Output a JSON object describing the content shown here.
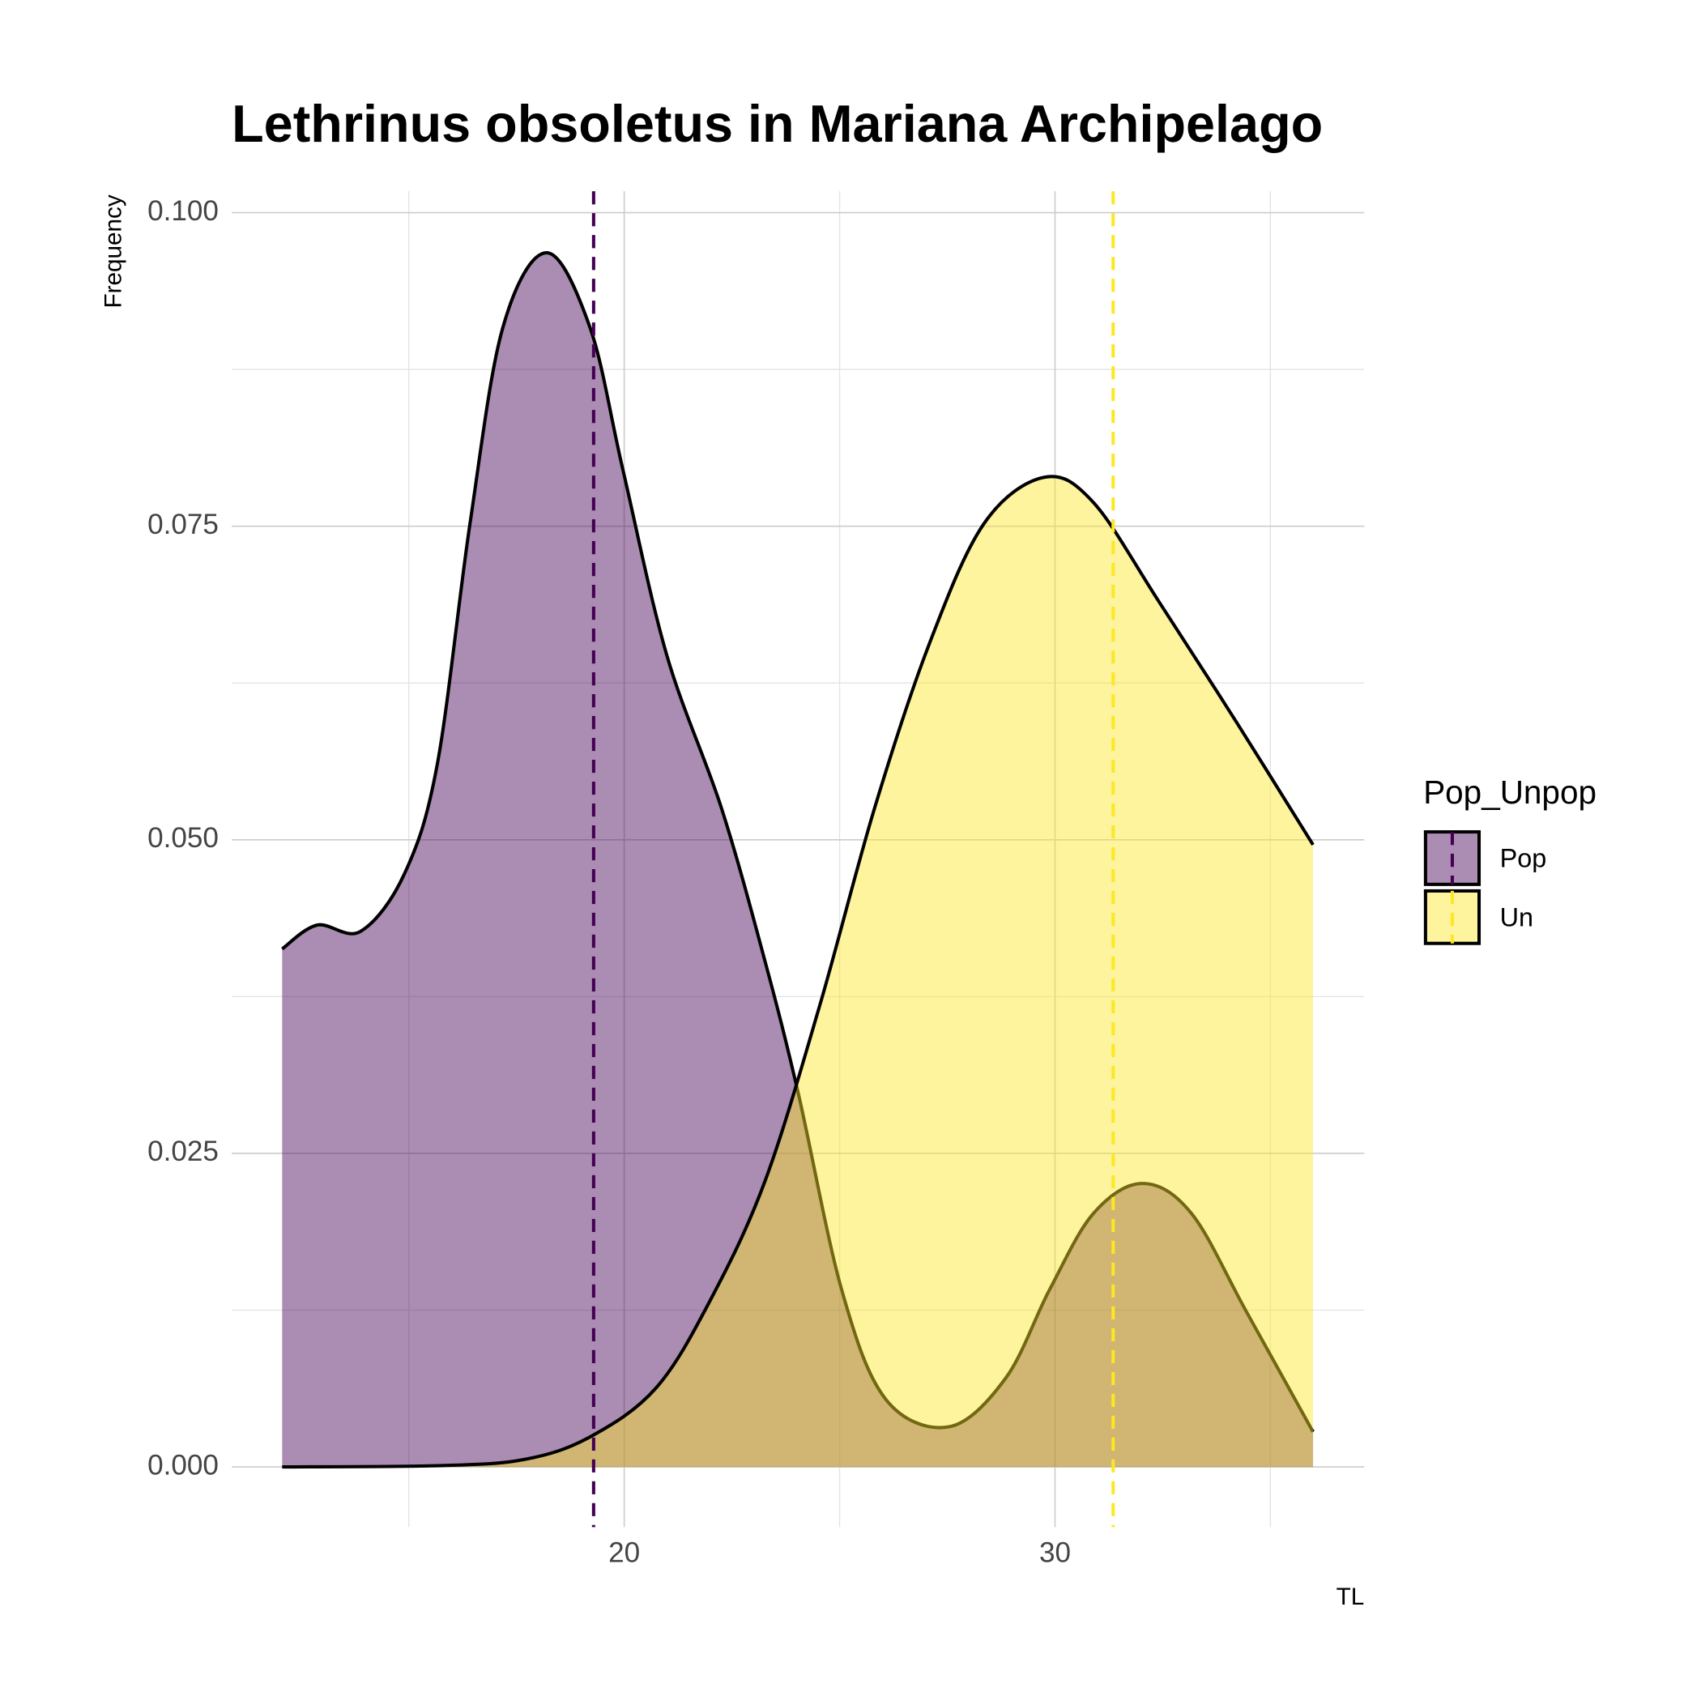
{
  "chart_data": {
    "type": "density",
    "title": "Lethrinus obsoletus in Mariana Archipelago",
    "x_label": "TL",
    "y_label": "Frequency",
    "legend_title": "Pop_Unpop",
    "legend_position": "right",
    "xlim": [
      10.89,
      37.18
    ],
    "ylim": [
      -0.0048,
      0.1017
    ],
    "xticks": [
      20,
      30
    ],
    "yticks": [
      {
        "value": 0,
        "label": "0.000"
      },
      {
        "value": 0.025,
        "label": "0.025"
      },
      {
        "value": 0.05,
        "label": "0.050"
      },
      {
        "value": 0.075,
        "label": "0.075"
      },
      {
        "value": 0.1,
        "label": "0.100"
      }
    ],
    "grid": true,
    "series": [
      {
        "name": "Pop",
        "color": "#440154",
        "mean": 19.29,
        "x": [
          12.06,
          12.87,
          13.88,
          14.9,
          15.66,
          16.42,
          17.18,
          18.2,
          19.21,
          19.97,
          20.99,
          22.26,
          23.27,
          24.04,
          25.05,
          26.07,
          27.54,
          28.86,
          29.87,
          30.89,
          32.03,
          33.17,
          34.44,
          35.99
        ],
        "values": [
          0.0413,
          0.0432,
          0.0427,
          0.0473,
          0.056,
          0.0752,
          0.0908,
          0.0968,
          0.0908,
          0.0795,
          0.0647,
          0.0525,
          0.0403,
          0.0298,
          0.0141,
          0.0054,
          0.0032,
          0.0071,
          0.0141,
          0.0202,
          0.0226,
          0.0202,
          0.0124,
          0.0028
        ]
      },
      {
        "name": "Un",
        "color": "#FDE725",
        "mean": 31.35,
        "x": [
          12.06,
          15.66,
          17.69,
          19.21,
          20.74,
          22.0,
          23.27,
          24.54,
          25.81,
          27.08,
          28.35,
          29.75,
          30.89,
          32.41,
          34.19,
          35.99
        ],
        "values": [
          0.0,
          0.0001,
          0.0006,
          0.0024,
          0.0063,
          0.0133,
          0.0228,
          0.0368,
          0.0525,
          0.0656,
          0.0752,
          0.0789,
          0.0769,
          0.069,
          0.0595,
          0.0496
        ]
      }
    ]
  }
}
